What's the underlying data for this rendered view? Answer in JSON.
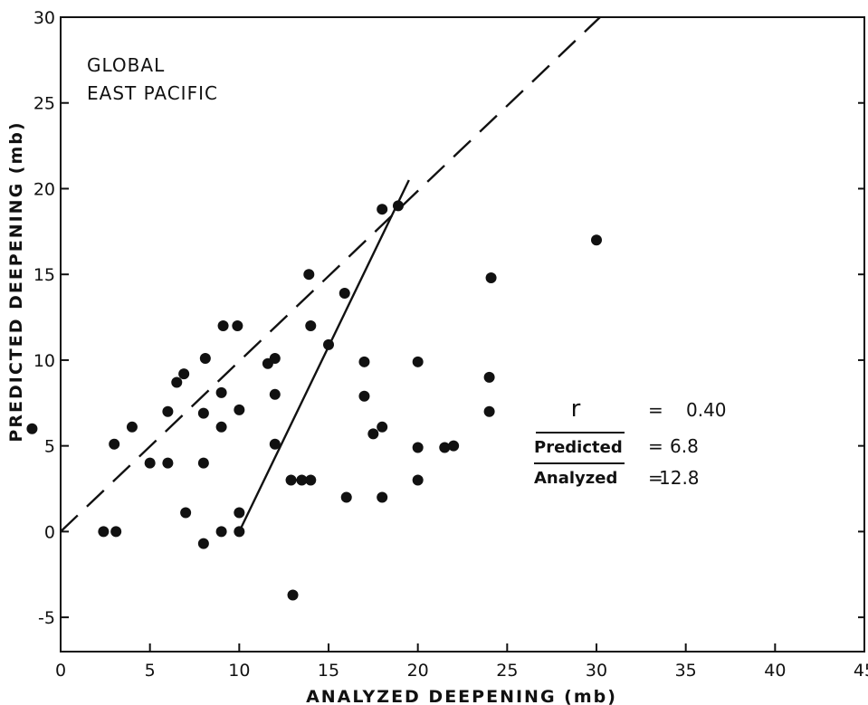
{
  "chart_data": {
    "type": "scatter",
    "title": "",
    "annotations": [
      "GLOBAL",
      "EAST PACIFIC"
    ],
    "xlabel": "ANALYZED DEEPENING (mb)",
    "ylabel": "PREDICTED DEEPENING (mb)",
    "xlim": [
      0,
      45
    ],
    "ylim": [
      -7,
      30
    ],
    "x_ticks": [
      0,
      5,
      10,
      15,
      20,
      25,
      30,
      35,
      40,
      45
    ],
    "y_ticks": [
      -5,
      0,
      5,
      10,
      15,
      20,
      25,
      30
    ],
    "x_tick_labels": [
      "0",
      "5",
      "10",
      "15",
      "20",
      "25",
      "30",
      "35",
      "40",
      "45"
    ],
    "y_tick_labels": [
      "-5",
      "0",
      "5",
      "10",
      "15",
      "20",
      "25",
      "30"
    ],
    "grid": false,
    "points": [
      {
        "x": -1.6,
        "y": 6
      },
      {
        "x": 2.4,
        "y": 0
      },
      {
        "x": 3.1,
        "y": 0
      },
      {
        "x": 3.0,
        "y": 5.1
      },
      {
        "x": 4.0,
        "y": 6.1
      },
      {
        "x": 5.0,
        "y": 4.0
      },
      {
        "x": 6.0,
        "y": 4.0
      },
      {
        "x": 6.0,
        "y": 7.0
      },
      {
        "x": 6.5,
        "y": 8.7
      },
      {
        "x": 6.9,
        "y": 9.2
      },
      {
        "x": 7.0,
        "y": 1.1
      },
      {
        "x": 8.0,
        "y": -0.7
      },
      {
        "x": 8.0,
        "y": 4.0
      },
      {
        "x": 8.0,
        "y": 6.9
      },
      {
        "x": 8.1,
        "y": 10.1
      },
      {
        "x": 9.0,
        "y": 0
      },
      {
        "x": 9.0,
        "y": 6.1
      },
      {
        "x": 9.0,
        "y": 8.1
      },
      {
        "x": 9.1,
        "y": 12.0
      },
      {
        "x": 10.0,
        "y": 0
      },
      {
        "x": 10.0,
        "y": 1.1
      },
      {
        "x": 10.0,
        "y": 7.1
      },
      {
        "x": 9.9,
        "y": 12.0
      },
      {
        "x": 11.6,
        "y": 9.8
      },
      {
        "x": 12.0,
        "y": 10.1
      },
      {
        "x": 12.0,
        "y": 8.0
      },
      {
        "x": 12.0,
        "y": 5.1
      },
      {
        "x": 12.9,
        "y": 3.0
      },
      {
        "x": 13.0,
        "y": -3.7
      },
      {
        "x": 13.5,
        "y": 3.0
      },
      {
        "x": 14.0,
        "y": 3.0
      },
      {
        "x": 14.0,
        "y": 12.0
      },
      {
        "x": 13.9,
        "y": 15.0
      },
      {
        "x": 15.0,
        "y": 10.9
      },
      {
        "x": 15.9,
        "y": 13.9
      },
      {
        "x": 16.0,
        "y": 2.0
      },
      {
        "x": 17.0,
        "y": 9.9
      },
      {
        "x": 17.0,
        "y": 7.9
      },
      {
        "x": 17.5,
        "y": 5.7
      },
      {
        "x": 18.0,
        "y": 6.1
      },
      {
        "x": 18.0,
        "y": 2.0
      },
      {
        "x": 18.0,
        "y": 18.8
      },
      {
        "x": 18.9,
        "y": 19.0
      },
      {
        "x": 20.0,
        "y": 9.9
      },
      {
        "x": 20.0,
        "y": 4.9
      },
      {
        "x": 20.0,
        "y": 3.0
      },
      {
        "x": 21.5,
        "y": 4.9
      },
      {
        "x": 22.0,
        "y": 5.0
      },
      {
        "x": 24.0,
        "y": 9.0
      },
      {
        "x": 24.0,
        "y": 7.0
      },
      {
        "x": 24.1,
        "y": 14.8
      },
      {
        "x": 30.0,
        "y": 17.0
      }
    ],
    "reference_lines": [
      {
        "style": "dashed",
        "x": [
          0,
          30.2
        ],
        "y": [
          0,
          30.0
        ]
      },
      {
        "style": "solid",
        "x": [
          10.0,
          19.5
        ],
        "y": [
          0,
          20.5
        ]
      }
    ],
    "statistics": [
      {
        "label": "r",
        "operator": "=",
        "value": "0.40"
      },
      {
        "label": "Predicted",
        "operator": "=",
        "value": "6.8"
      },
      {
        "label": "Analyzed",
        "operator": "=",
        "value": "12.8"
      }
    ]
  }
}
